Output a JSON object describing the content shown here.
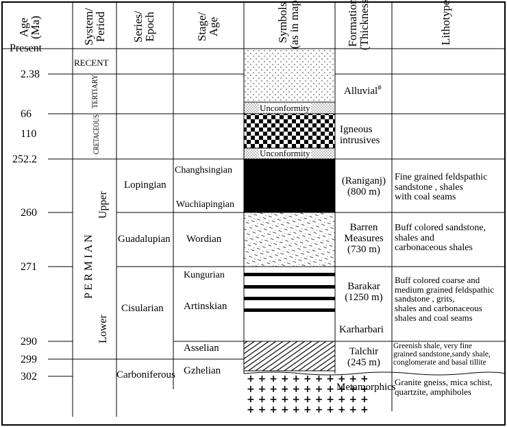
{
  "headers": {
    "age": "Age\n(Ma)",
    "system": "System/\nPeriod",
    "series": "Series/\nEpoch",
    "stage": "Stage/\nAge",
    "symbols": "Symbols\n(as in map)",
    "formation": "Formation\n(Thickness)",
    "lithotype": "Lithotype"
  },
  "ages": [
    "Present",
    "2.38",
    "66",
    "110",
    "252.2",
    "260",
    "271",
    "290",
    "299",
    "302"
  ],
  "systems": {
    "recent": "RECENT",
    "tertiary": "TERTIARY",
    "cretaceous": "CRETACEOUS",
    "permian": "P E R M I A N",
    "upper": "Upper",
    "lower": "Lower"
  },
  "series": {
    "lopingian": "Lopingian",
    "guadalupian": "Guadalupian",
    "cisularian": "Cisularian",
    "carboniferous": "Carboniferous"
  },
  "stages": {
    "changhsingian": "Changhsingian",
    "wuchiapingian": "Wuchiapingian",
    "wordian": "Wordian",
    "kungurian": "Kungurian",
    "artinskian": "Artinskian",
    "asselian": "Asselian",
    "gzhelian": "Gzhelian"
  },
  "symbols": {
    "unconformity1": "Unconformity",
    "unconformity2": "Unconformity"
  },
  "formations": {
    "alluvial": "Alluvial",
    "alluvial_mark": "#",
    "igneous": "Igneous\nintrusives",
    "raniganj": "(Raniganj)\n(800 m)",
    "barren": "Barren\nMeasures\n(730 m)",
    "barakar": "Barakar\n(1250 m)",
    "karharbari": "Karharbari",
    "talchir": "Talchir\n(245 m)",
    "metamorphics": "Metamorphics"
  },
  "lithotypes": {
    "raniganj": "Fine grained feldspathic\nsandstone , shales\nwith coal seams",
    "barren": "Buff colored sandstone,\nshales and\ncarbonaceous shales",
    "barakar": "Buff colored coarse and\nmedium grained feldspathic\nsandstone , grits,\nshales and carbonaceous\nshales and coal seams",
    "talchir": "Greenish shale, very fine\ngrained sandstone,sandy shale,\nconglomerate and basal tillite",
    "metamorphics": "Granite gneiss, mica schist,\nquartzite, amphiboles"
  }
}
